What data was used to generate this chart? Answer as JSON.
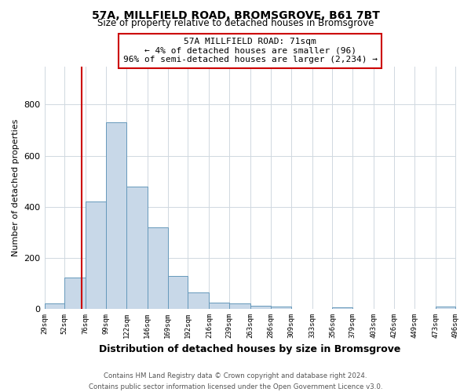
{
  "title": "57A, MILLFIELD ROAD, BROMSGROVE, B61 7BT",
  "subtitle": "Size of property relative to detached houses in Bromsgrove",
  "xlabel": "Distribution of detached houses by size in Bromsgrove",
  "ylabel": "Number of detached properties",
  "footer_line1": "Contains HM Land Registry data © Crown copyright and database right 2024.",
  "footer_line2": "Contains public sector information licensed under the Open Government Licence v3.0.",
  "bar_edges": [
    29,
    52,
    76,
    99,
    122,
    146,
    169,
    192,
    216,
    239,
    263,
    286,
    309,
    333,
    356,
    379,
    403,
    426,
    449,
    473,
    496
  ],
  "bar_heights": [
    22,
    122,
    422,
    730,
    480,
    318,
    130,
    65,
    25,
    22,
    12,
    10,
    0,
    0,
    7,
    0,
    0,
    0,
    0,
    8,
    0
  ],
  "bar_color": "#c8d8e8",
  "bar_edge_color": "#6699bb",
  "vline_x": 71,
  "vline_color": "#cc0000",
  "annotation_text": "57A MILLFIELD ROAD: 71sqm\n← 4% of detached houses are smaller (96)\n96% of semi-detached houses are larger (2,234) →",
  "annotation_box_color": "#ffffff",
  "annotation_box_edgecolor": "#cc0000",
  "ylim": [
    0,
    950
  ],
  "xlim": [
    29,
    496
  ],
  "tick_labels": [
    "29sqm",
    "52sqm",
    "76sqm",
    "99sqm",
    "122sqm",
    "146sqm",
    "169sqm",
    "192sqm",
    "216sqm",
    "239sqm",
    "263sqm",
    "286sqm",
    "309sqm",
    "333sqm",
    "356sqm",
    "379sqm",
    "403sqm",
    "426sqm",
    "449sqm",
    "473sqm",
    "496sqm"
  ],
  "tick_positions": [
    29,
    52,
    76,
    99,
    122,
    146,
    169,
    192,
    216,
    239,
    263,
    286,
    309,
    333,
    356,
    379,
    403,
    426,
    449,
    473,
    496
  ],
  "background_color": "#ffffff",
  "grid_color": "#d0d8e0"
}
